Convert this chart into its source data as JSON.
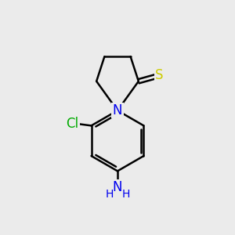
{
  "bg_color": "#ebebeb",
  "bond_color": "#000000",
  "bond_width": 1.8,
  "atom_colors": {
    "N": "#0000ee",
    "Cl": "#00aa00",
    "S": "#cccc00",
    "NH2": "#0000ee"
  },
  "font_size_atom": 12,
  "font_size_H": 10
}
